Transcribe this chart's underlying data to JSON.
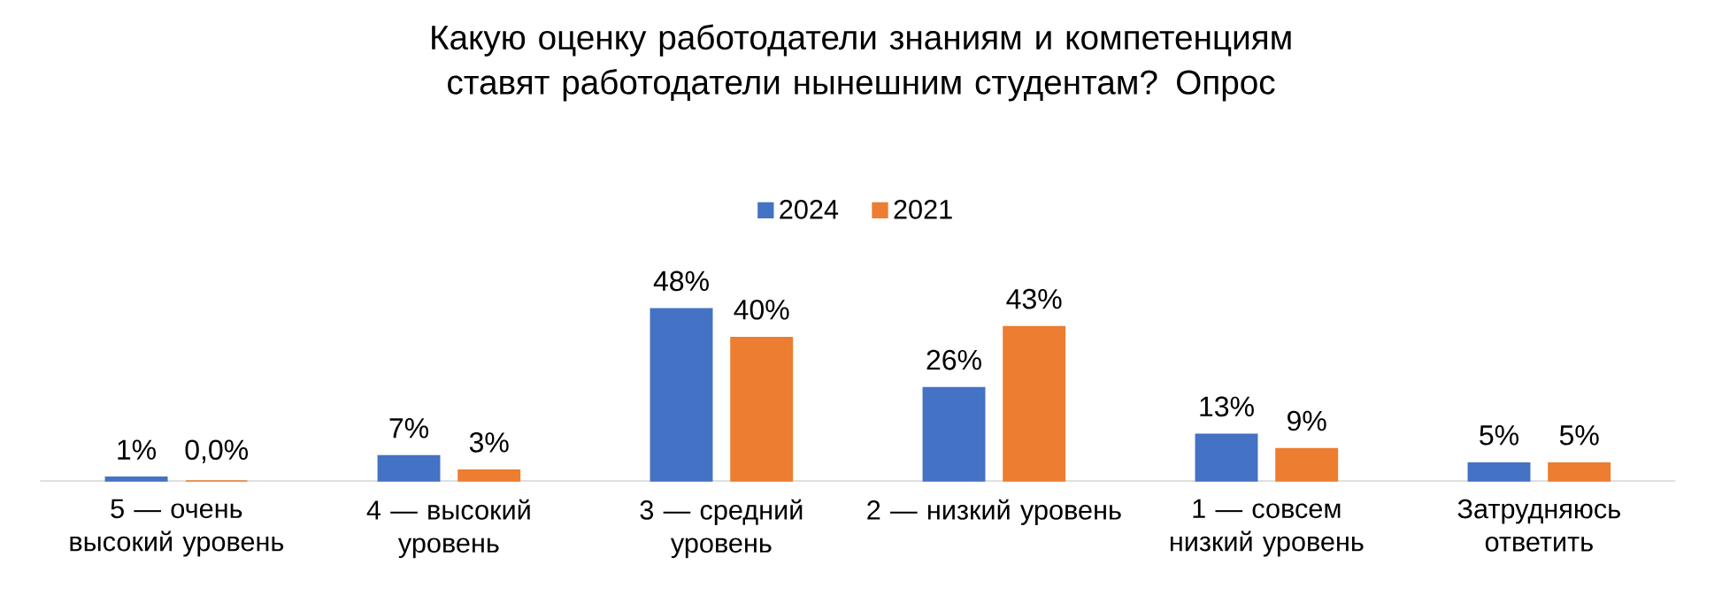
{
  "chart_data": {
    "type": "bar",
    "title": "Какую оценку работодатели знаниям и компетенциям ставят работодатели нынешним студентам? Опрос",
    "categories": [
      "5 — очень высокий уровень",
      "4 — высокий уровень",
      "3 — средний уровень",
      "2 — низкий уровень",
      "1 — совсем низкий уровень",
      "Затрудняюсь ответить"
    ],
    "series": [
      {
        "name": "2024",
        "color": "#4472c4",
        "values": [
          1,
          7,
          48,
          26,
          13,
          5
        ],
        "value_labels": [
          "1%",
          "7%",
          "48%",
          "26%",
          "13%",
          "5%"
        ]
      },
      {
        "name": "2021",
        "color": "#ed7d31",
        "values": [
          0.0,
          3,
          40,
          43,
          9,
          5
        ],
        "value_labels": [
          "0,0%",
          "3%",
          "40%",
          "43%",
          "9%",
          "5%"
        ]
      }
    ],
    "legend": "top"
  }
}
